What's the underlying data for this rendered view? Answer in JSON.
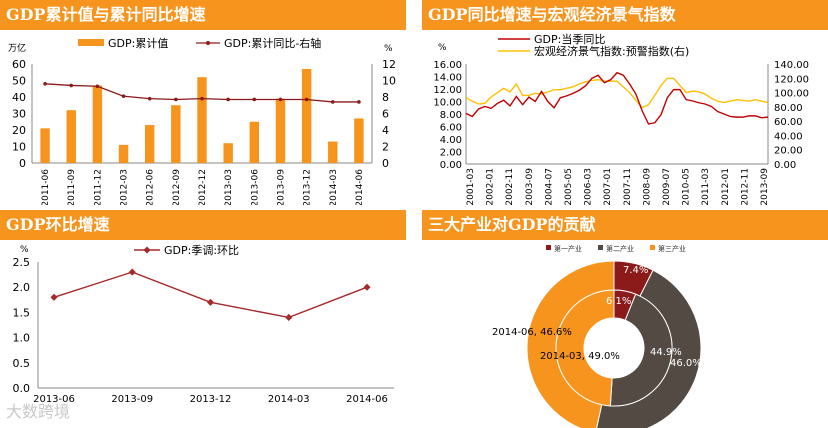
{
  "panels": {
    "p1": {
      "title": "GDP累计值与累计同比增速"
    },
    "p2": {
      "title": "GDP同比增速与宏观经济景气指数"
    },
    "p3": {
      "title": "GDP环比增速"
    },
    "p4": {
      "title": "三大产业对GDP的贡献"
    }
  },
  "watermark": "大数跨境",
  "colors": {
    "orange": "#f7941d",
    "darkred": "#8b1a1a",
    "gold": "#ffc000",
    "red": "#c00000",
    "darkgray": "#524a43",
    "line": "#a52a2a"
  },
  "chart_data": [
    {
      "id": "cumulative",
      "type": "bar+line",
      "left_unit": "万亿",
      "right_unit": "%",
      "categories": [
        "2011-06",
        "2011-09",
        "2011-12",
        "2012-03",
        "2012-06",
        "2012-09",
        "2012-12",
        "2013-03",
        "2013-06",
        "2013-09",
        "2013-12",
        "2014-03",
        "2014-06"
      ],
      "series": [
        {
          "name": "GDP:累计值",
          "axis": "left",
          "kind": "bar",
          "values": [
            21,
            32,
            47,
            11,
            23,
            35,
            52,
            12,
            25,
            39,
            57,
            13,
            27
          ]
        },
        {
          "name": "GDP:累计同比-右轴",
          "axis": "right",
          "kind": "line",
          "values": [
            9.6,
            9.4,
            9.3,
            8.1,
            7.8,
            7.7,
            7.8,
            7.7,
            7.7,
            7.7,
            7.7,
            7.4,
            7.4
          ]
        }
      ],
      "ylim_left": [
        0,
        60
      ],
      "yticks_left": [
        "0",
        "10",
        "20",
        "30",
        "40",
        "50",
        "60"
      ],
      "ylim_right": [
        0,
        12
      ],
      "yticks_right": [
        "0",
        "2",
        "4",
        "6",
        "8",
        "10",
        "12"
      ]
    },
    {
      "id": "yoy_sentiment",
      "type": "line",
      "left_unit": "%",
      "x_labels": [
        "2001-03",
        "2002-01",
        "2002-11",
        "2003-09",
        "2004-07",
        "2005-05",
        "2006-03",
        "2007-01",
        "2007-11",
        "2008-09",
        "2009-07",
        "2010-05",
        "2011-03",
        "2012-01",
        "2012-11",
        "2013-09"
      ],
      "series": [
        {
          "name": "GDP:当季同比",
          "axis": "left",
          "values": [
            8.1,
            7.6,
            8.8,
            9.2,
            8.9,
            9.7,
            10.2,
            9.3,
            10.8,
            9.5,
            10.7,
            10.0,
            11.6,
            10.0,
            9.0,
            10.6,
            10.9,
            11.3,
            11.8,
            12.5,
            13.7,
            14.2,
            13.0,
            13.5,
            14.6,
            14.2,
            12.8,
            11.2,
            8.5,
            6.4,
            6.6,
            7.9,
            10.6,
            11.9,
            11.9,
            10.3,
            10.1,
            9.8,
            9.6,
            9.2,
            8.4,
            8.0,
            7.6,
            7.5,
            7.5,
            7.7,
            7.7,
            7.4,
            7.5
          ]
        },
        {
          "name": "宏观经济景气指数:预警指数(右)",
          "axis": "right",
          "values": [
            93,
            88,
            84,
            85,
            94,
            100,
            106,
            101,
            112,
            96,
            96,
            99,
            98,
            101,
            104,
            104,
            106,
            108,
            112,
            115,
            117,
            118,
            116,
            116,
            116,
            108,
            100,
            89,
            79,
            83,
            96,
            110,
            120,
            120,
            110,
            100,
            102,
            101,
            98,
            92,
            88,
            86,
            88,
            90,
            89,
            88,
            90,
            88,
            86
          ]
        }
      ],
      "ylim_left": [
        0,
        16
      ],
      "yticks_left": [
        "0.00",
        "2.00",
        "4.00",
        "6.00",
        "8.00",
        "10.00",
        "12.00",
        "14.00",
        "16.00"
      ],
      "ylim_right": [
        0,
        140
      ],
      "yticks_right": [
        "0.00",
        "20.00",
        "40.00",
        "60.00",
        "80.00",
        "100.00",
        "120.00",
        "140.00"
      ]
    },
    {
      "id": "qoq",
      "type": "line",
      "unit": "%",
      "categories": [
        "2013-06",
        "2013-09",
        "2013-12",
        "2014-03",
        "2014-06"
      ],
      "series": [
        {
          "name": "GDP:季调:环比",
          "values": [
            1.8,
            2.3,
            1.7,
            1.4,
            2.0
          ]
        }
      ],
      "ylim": [
        0,
        2.5
      ],
      "yticks": [
        "0.0",
        "0.5",
        "1.0",
        "1.5",
        "2.0",
        "2.5"
      ]
    },
    {
      "id": "industry_contribution",
      "type": "pie",
      "legend": [
        "第一产业",
        "第二产业",
        "第三产业"
      ],
      "rings": [
        {
          "period": "2014-06",
          "position": "outer",
          "values": [
            7.4,
            46.0,
            46.6
          ]
        },
        {
          "period": "2014-03",
          "position": "inner",
          "values": [
            6.1,
            44.9,
            49.0
          ]
        }
      ],
      "labels": {
        "outer_primary": "7.4%",
        "inner_primary": "6.1%",
        "inner_secondary": "44.9%",
        "outer_secondary": "46.0%",
        "outer_tertiary": "2014-06, 46.6%",
        "inner_tertiary": "2014-03, 49.0%"
      }
    }
  ]
}
